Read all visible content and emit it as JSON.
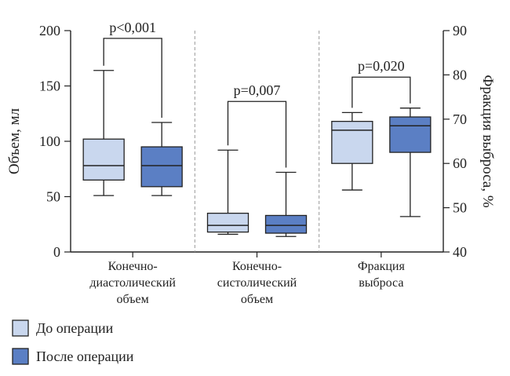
{
  "chart_data": {
    "type": "box",
    "y_left": {
      "label": "Объем, мл",
      "lim": [
        0,
        200
      ],
      "ticks": [
        "0",
        "50",
        "100",
        "150",
        "200"
      ]
    },
    "y_right": {
      "label": "Фракция выброса, %",
      "lim": [
        40,
        90
      ],
      "ticks": [
        "40",
        "50",
        "60",
        "70",
        "80",
        "90"
      ]
    },
    "categories": [
      {
        "key": "edv",
        "label": [
          "Конечно-",
          "диастолический",
          "объем"
        ],
        "axis": "left"
      },
      {
        "key": "esv",
        "label": [
          "Конечно-",
          "систолический",
          "объем"
        ],
        "axis": "left"
      },
      {
        "key": "ef",
        "label": [
          "Фракция",
          "выброса"
        ],
        "axis": "right"
      }
    ],
    "series": [
      {
        "name": "До операции",
        "color": "#c9d7ee",
        "boxes": [
          {
            "min": 51,
            "q1": 65,
            "median": 78,
            "q3": 102,
            "max": 164
          },
          {
            "min": 16,
            "q1": 18,
            "median": 24,
            "q3": 35,
            "max": 92
          },
          {
            "min": 54,
            "q1": 60,
            "median": 67.5,
            "q3": 69.5,
            "max": 71.5
          }
        ]
      },
      {
        "name": "После операции",
        "color": "#5b7fc4",
        "boxes": [
          {
            "min": 51,
            "q1": 59,
            "median": 78,
            "q3": 95,
            "max": 117
          },
          {
            "min": 14,
            "q1": 17,
            "median": 24,
            "q3": 33,
            "max": 72
          },
          {
            "min": 48,
            "q1": 62.5,
            "median": 68.5,
            "q3": 70.5,
            "max": 72.5
          }
        ]
      }
    ],
    "annotations": [
      {
        "category": "edv",
        "text": "p<0,001",
        "level": 193
      },
      {
        "category": "esv",
        "text": "p=0,007",
        "level": 136
      },
      {
        "category": "ef",
        "text": "p=0,020",
        "level": 79.5
      }
    ],
    "legend": {
      "placement": "bottom-left"
    },
    "grid": false
  }
}
